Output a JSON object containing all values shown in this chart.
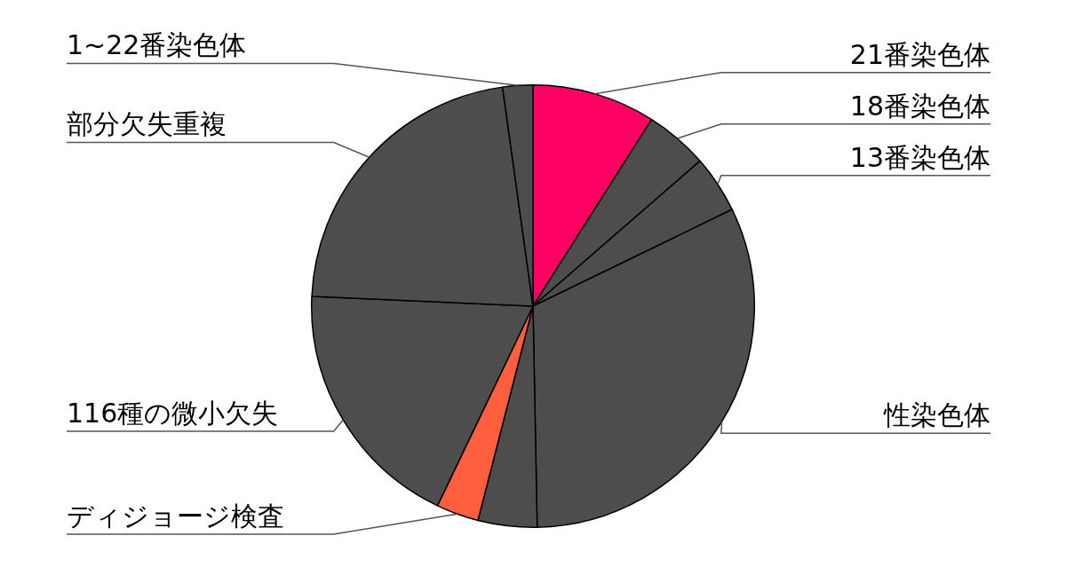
{
  "chart_data": {
    "type": "pie",
    "categories": [
      "21番染色体",
      "18番染色体",
      "13番染色体",
      "性染色体",
      null,
      "ディジョージ検査",
      "116種の微小欠失",
      "部分欠失重複",
      "1~22番染色体"
    ],
    "values": [
      9.0,
      4.6,
      4.2,
      31.9,
      4.3,
      3.1,
      18.6,
      22.1,
      2.2
    ],
    "colors": [
      "#ff0062",
      "#4d4d4d",
      "#4d4d4d",
      "#4d4d4d",
      "#4d4d4d",
      "#ff5f3f",
      "#4d4d4d",
      "#4d4d4d",
      "#4d4d4d"
    ],
    "legend": false
  }
}
